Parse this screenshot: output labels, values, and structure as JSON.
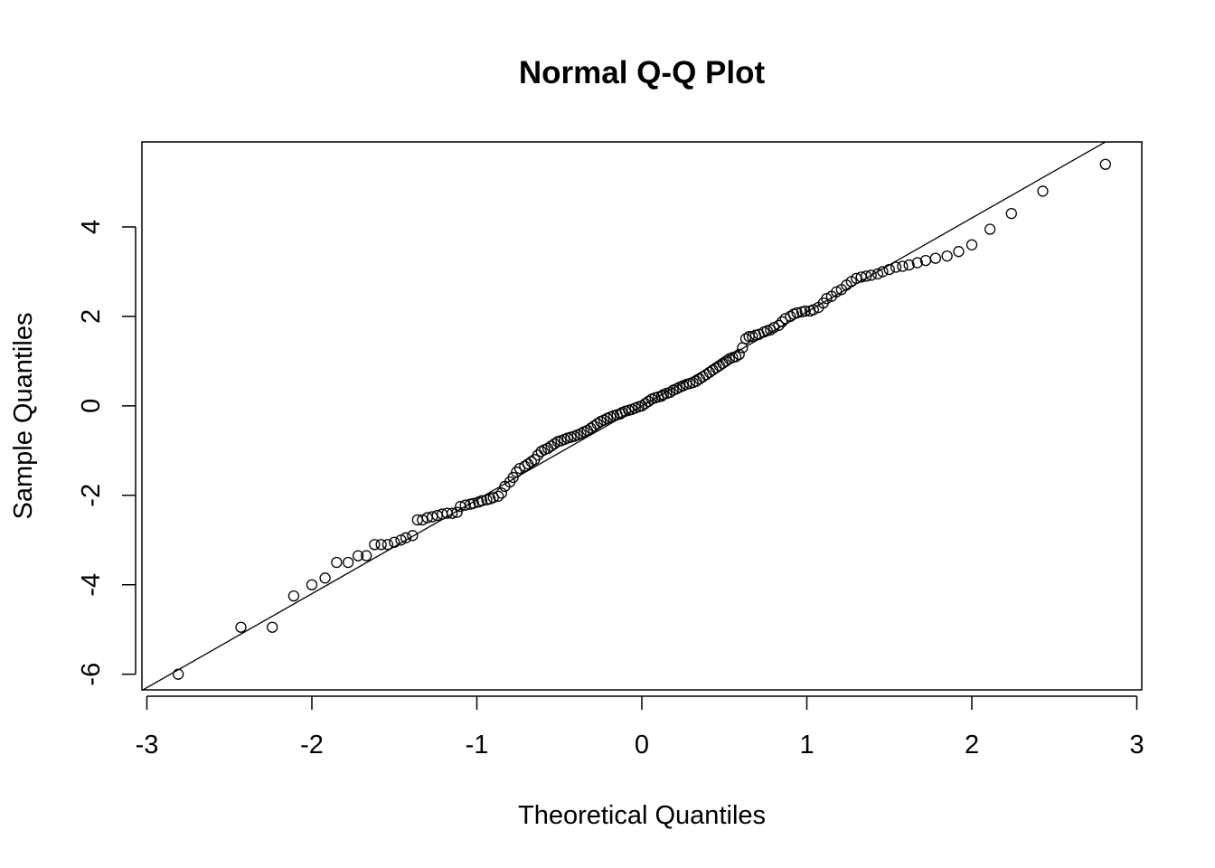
{
  "chart_data": {
    "type": "scatter",
    "title": "Normal Q-Q Plot",
    "xlabel": "Theoretical Quantiles",
    "ylabel": "Sample Quantiles",
    "xlim": [
      -3.03,
      3.03
    ],
    "ylim": [
      -6.35,
      5.9
    ],
    "x_ticks": [
      -3,
      -2,
      -1,
      0,
      1,
      2,
      3
    ],
    "x_tick_labels": [
      "-3",
      "-2",
      "-1",
      "0",
      "1",
      "2",
      "3"
    ],
    "y_ticks": [
      -6,
      -4,
      -2,
      0,
      2,
      4
    ],
    "y_tick_labels": [
      "-6",
      "-4",
      "-2",
      "0",
      "2",
      "4"
    ],
    "grid": false,
    "legend": "none",
    "marker": "open-circle",
    "reference_line": {
      "slope": 2.1,
      "intercept": 0
    },
    "series": [
      {
        "points": [
          [
            -2.81,
            -6.0
          ],
          [
            -2.43,
            -4.95
          ],
          [
            -2.24,
            -4.95
          ],
          [
            -2.11,
            -4.25
          ],
          [
            -2.0,
            -4.0
          ],
          [
            -1.92,
            -3.85
          ],
          [
            -1.85,
            -3.5
          ],
          [
            -1.78,
            -3.5
          ],
          [
            -1.72,
            -3.35
          ],
          [
            -1.67,
            -3.35
          ],
          [
            -1.62,
            -3.1
          ],
          [
            -1.58,
            -3.1
          ],
          [
            -1.54,
            -3.1
          ],
          [
            -1.5,
            -3.05
          ],
          [
            -1.46,
            -3.0
          ],
          [
            -1.43,
            -2.95
          ],
          [
            -1.39,
            -2.9
          ],
          [
            -1.36,
            -2.55
          ],
          [
            -1.33,
            -2.55
          ],
          [
            -1.3,
            -2.5
          ],
          [
            -1.27,
            -2.48
          ],
          [
            -1.24,
            -2.45
          ],
          [
            -1.21,
            -2.42
          ],
          [
            -1.18,
            -2.4
          ],
          [
            -1.15,
            -2.4
          ],
          [
            -1.12,
            -2.38
          ],
          [
            -1.1,
            -2.25
          ],
          [
            -1.07,
            -2.22
          ],
          [
            -1.04,
            -2.2
          ],
          [
            -1.02,
            -2.18
          ],
          [
            -0.99,
            -2.15
          ],
          [
            -0.97,
            -2.12
          ],
          [
            -0.94,
            -2.1
          ],
          [
            -0.92,
            -2.08
          ],
          [
            -0.9,
            -2.05
          ],
          [
            -0.87,
            -2.02
          ],
          [
            -0.85,
            -1.95
          ],
          [
            -0.83,
            -1.8
          ],
          [
            -0.8,
            -1.7
          ],
          [
            -0.78,
            -1.6
          ],
          [
            -0.76,
            -1.48
          ],
          [
            -0.74,
            -1.4
          ],
          [
            -0.71,
            -1.35
          ],
          [
            -0.69,
            -1.3
          ],
          [
            -0.67,
            -1.25
          ],
          [
            -0.65,
            -1.2
          ],
          [
            -0.63,
            -1.1
          ],
          [
            -0.61,
            -1.02
          ],
          [
            -0.59,
            -0.98
          ],
          [
            -0.57,
            -0.95
          ],
          [
            -0.55,
            -0.9
          ],
          [
            -0.53,
            -0.85
          ],
          [
            -0.51,
            -0.8
          ],
          [
            -0.49,
            -0.78
          ],
          [
            -0.47,
            -0.75
          ],
          [
            -0.45,
            -0.72
          ],
          [
            -0.43,
            -0.7
          ],
          [
            -0.41,
            -0.68
          ],
          [
            -0.39,
            -0.65
          ],
          [
            -0.37,
            -0.62
          ],
          [
            -0.35,
            -0.58
          ],
          [
            -0.33,
            -0.55
          ],
          [
            -0.31,
            -0.5
          ],
          [
            -0.29,
            -0.45
          ],
          [
            -0.27,
            -0.4
          ],
          [
            -0.25,
            -0.35
          ],
          [
            -0.23,
            -0.32
          ],
          [
            -0.21,
            -0.28
          ],
          [
            -0.19,
            -0.25
          ],
          [
            -0.17,
            -0.22
          ],
          [
            -0.15,
            -0.2
          ],
          [
            -0.13,
            -0.18
          ],
          [
            -0.12,
            -0.15
          ],
          [
            -0.1,
            -0.12
          ],
          [
            -0.08,
            -0.1
          ],
          [
            -0.06,
            -0.08
          ],
          [
            -0.04,
            -0.05
          ],
          [
            -0.02,
            -0.02
          ],
          [
            0.0,
            0.0
          ],
          [
            0.02,
            0.05
          ],
          [
            0.04,
            0.1
          ],
          [
            0.06,
            0.15
          ],
          [
            0.08,
            0.18
          ],
          [
            0.1,
            0.2
          ],
          [
            0.12,
            0.22
          ],
          [
            0.13,
            0.25
          ],
          [
            0.15,
            0.28
          ],
          [
            0.17,
            0.3
          ],
          [
            0.19,
            0.35
          ],
          [
            0.21,
            0.38
          ],
          [
            0.23,
            0.42
          ],
          [
            0.25,
            0.45
          ],
          [
            0.27,
            0.48
          ],
          [
            0.29,
            0.5
          ],
          [
            0.31,
            0.52
          ],
          [
            0.33,
            0.55
          ],
          [
            0.35,
            0.6
          ],
          [
            0.37,
            0.65
          ],
          [
            0.39,
            0.7
          ],
          [
            0.41,
            0.75
          ],
          [
            0.43,
            0.8
          ],
          [
            0.45,
            0.85
          ],
          [
            0.47,
            0.9
          ],
          [
            0.49,
            0.95
          ],
          [
            0.51,
            1.0
          ],
          [
            0.53,
            1.05
          ],
          [
            0.55,
            1.08
          ],
          [
            0.57,
            1.1
          ],
          [
            0.59,
            1.15
          ],
          [
            0.61,
            1.3
          ],
          [
            0.63,
            1.5
          ],
          [
            0.65,
            1.55
          ],
          [
            0.67,
            1.55
          ],
          [
            0.69,
            1.58
          ],
          [
            0.71,
            1.6
          ],
          [
            0.74,
            1.65
          ],
          [
            0.76,
            1.68
          ],
          [
            0.78,
            1.7
          ],
          [
            0.8,
            1.75
          ],
          [
            0.83,
            1.8
          ],
          [
            0.85,
            1.88
          ],
          [
            0.87,
            1.95
          ],
          [
            0.9,
            2.0
          ],
          [
            0.92,
            2.05
          ],
          [
            0.94,
            2.08
          ],
          [
            0.97,
            2.1
          ],
          [
            0.99,
            2.12
          ],
          [
            1.02,
            2.12
          ],
          [
            1.04,
            2.15
          ],
          [
            1.07,
            2.2
          ],
          [
            1.1,
            2.3
          ],
          [
            1.12,
            2.4
          ],
          [
            1.15,
            2.45
          ],
          [
            1.18,
            2.55
          ],
          [
            1.21,
            2.6
          ],
          [
            1.24,
            2.7
          ],
          [
            1.27,
            2.78
          ],
          [
            1.3,
            2.85
          ],
          [
            1.33,
            2.88
          ],
          [
            1.36,
            2.9
          ],
          [
            1.39,
            2.92
          ],
          [
            1.43,
            2.95
          ],
          [
            1.46,
            3.0
          ],
          [
            1.5,
            3.05
          ],
          [
            1.54,
            3.1
          ],
          [
            1.58,
            3.12
          ],
          [
            1.62,
            3.15
          ],
          [
            1.67,
            3.2
          ],
          [
            1.72,
            3.25
          ],
          [
            1.78,
            3.3
          ],
          [
            1.85,
            3.35
          ],
          [
            1.92,
            3.45
          ],
          [
            2.0,
            3.6
          ],
          [
            2.11,
            3.95
          ],
          [
            2.24,
            4.3
          ],
          [
            2.43,
            4.8
          ],
          [
            2.81,
            5.4
          ]
        ]
      }
    ]
  }
}
